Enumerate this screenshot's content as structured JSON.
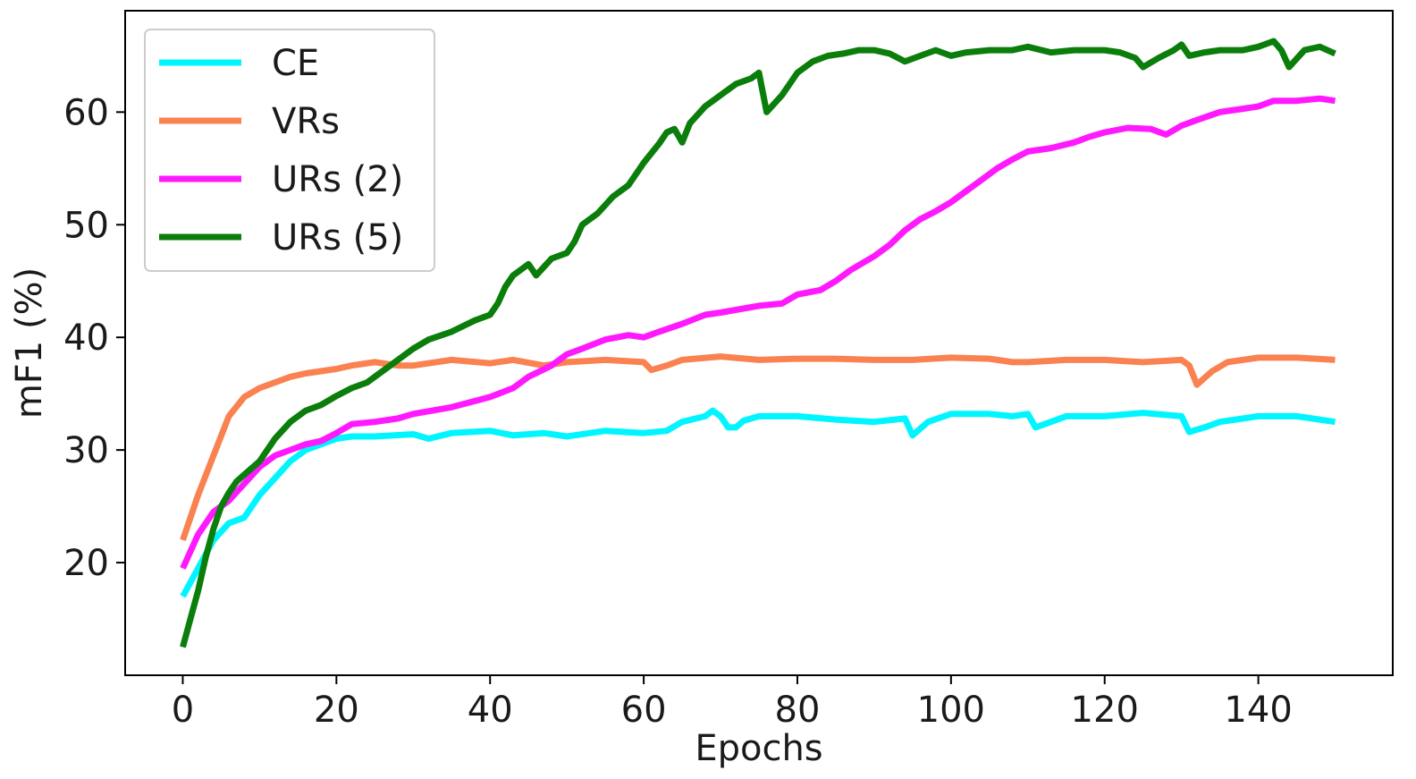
{
  "chart_data": {
    "type": "line",
    "title": "",
    "xlabel": "Epochs",
    "ylabel": "mF1 (%)",
    "xlim": [
      -7.5,
      157.5
    ],
    "ylim": [
      10,
      69
    ],
    "xticks": [
      0,
      20,
      40,
      60,
      80,
      100,
      120,
      140
    ],
    "yticks": [
      20,
      30,
      40,
      50,
      60
    ],
    "grid": false,
    "legend": "top-left",
    "series": [
      {
        "name": "CE",
        "color": "#00f5ff",
        "points": [
          [
            0,
            17
          ],
          [
            2,
            19.5
          ],
          [
            4,
            22
          ],
          [
            6,
            23.5
          ],
          [
            8,
            24
          ],
          [
            10,
            26
          ],
          [
            12,
            27.5
          ],
          [
            14,
            29
          ],
          [
            16,
            30
          ],
          [
            18,
            30.5
          ],
          [
            20,
            31
          ],
          [
            22,
            31.2
          ],
          [
            25,
            31.2
          ],
          [
            30,
            31.4
          ],
          [
            32,
            31
          ],
          [
            35,
            31.5
          ],
          [
            40,
            31.7
          ],
          [
            43,
            31.3
          ],
          [
            47,
            31.5
          ],
          [
            50,
            31.2
          ],
          [
            55,
            31.7
          ],
          [
            60,
            31.5
          ],
          [
            63,
            31.7
          ],
          [
            65,
            32.5
          ],
          [
            68,
            33
          ],
          [
            69,
            33.5
          ],
          [
            70,
            33
          ],
          [
            71,
            32
          ],
          [
            72,
            32
          ],
          [
            73,
            32.6
          ],
          [
            75,
            33
          ],
          [
            80,
            33
          ],
          [
            85,
            32.7
          ],
          [
            90,
            32.5
          ],
          [
            94,
            32.8
          ],
          [
            95,
            31.3
          ],
          [
            97,
            32.5
          ],
          [
            100,
            33.2
          ],
          [
            105,
            33.2
          ],
          [
            108,
            33
          ],
          [
            110,
            33.2
          ],
          [
            111,
            32
          ],
          [
            115,
            33
          ],
          [
            120,
            33
          ],
          [
            125,
            33.3
          ],
          [
            130,
            33
          ],
          [
            131,
            31.6
          ],
          [
            133,
            32
          ],
          [
            135,
            32.5
          ],
          [
            140,
            33
          ],
          [
            145,
            33
          ],
          [
            150,
            32.5
          ]
        ]
      },
      {
        "name": "VRs",
        "color": "#fa8150",
        "points": [
          [
            0,
            22
          ],
          [
            2,
            26
          ],
          [
            4,
            29.5
          ],
          [
            6,
            33
          ],
          [
            8,
            34.7
          ],
          [
            10,
            35.5
          ],
          [
            12,
            36
          ],
          [
            14,
            36.5
          ],
          [
            16,
            36.8
          ],
          [
            18,
            37
          ],
          [
            20,
            37.2
          ],
          [
            22,
            37.5
          ],
          [
            25,
            37.8
          ],
          [
            28,
            37.5
          ],
          [
            30,
            37.5
          ],
          [
            35,
            38
          ],
          [
            40,
            37.7
          ],
          [
            43,
            38
          ],
          [
            47,
            37.5
          ],
          [
            50,
            37.8
          ],
          [
            55,
            38
          ],
          [
            60,
            37.8
          ],
          [
            61,
            37.1
          ],
          [
            63,
            37.5
          ],
          [
            65,
            38
          ],
          [
            70,
            38.3
          ],
          [
            75,
            38
          ],
          [
            80,
            38.1
          ],
          [
            85,
            38.1
          ],
          [
            90,
            38
          ],
          [
            95,
            38
          ],
          [
            100,
            38.2
          ],
          [
            105,
            38.1
          ],
          [
            108,
            37.8
          ],
          [
            110,
            37.8
          ],
          [
            115,
            38
          ],
          [
            120,
            38
          ],
          [
            125,
            37.8
          ],
          [
            130,
            38
          ],
          [
            131,
            37.5
          ],
          [
            132,
            35.8
          ],
          [
            134,
            37
          ],
          [
            136,
            37.8
          ],
          [
            140,
            38.2
          ],
          [
            145,
            38.2
          ],
          [
            150,
            38
          ]
        ]
      },
      {
        "name": "URs (2)",
        "color": "#ff19ff",
        "points": [
          [
            0,
            19.5
          ],
          [
            2,
            22.5
          ],
          [
            4,
            24.5
          ],
          [
            6,
            25.5
          ],
          [
            8,
            27
          ],
          [
            10,
            28.5
          ],
          [
            12,
            29.5
          ],
          [
            14,
            30
          ],
          [
            16,
            30.5
          ],
          [
            18,
            30.8
          ],
          [
            20,
            31.5
          ],
          [
            22,
            32.3
          ],
          [
            25,
            32.5
          ],
          [
            28,
            32.8
          ],
          [
            30,
            33.2
          ],
          [
            35,
            33.8
          ],
          [
            40,
            34.7
          ],
          [
            43,
            35.5
          ],
          [
            45,
            36.5
          ],
          [
            48,
            37.5
          ],
          [
            50,
            38.5
          ],
          [
            52,
            39
          ],
          [
            55,
            39.8
          ],
          [
            58,
            40.2
          ],
          [
            60,
            40
          ],
          [
            62,
            40.5
          ],
          [
            65,
            41.2
          ],
          [
            68,
            42
          ],
          [
            70,
            42.2
          ],
          [
            75,
            42.8
          ],
          [
            78,
            43
          ],
          [
            80,
            43.8
          ],
          [
            83,
            44.2
          ],
          [
            85,
            45
          ],
          [
            87,
            46
          ],
          [
            90,
            47.2
          ],
          [
            92,
            48.2
          ],
          [
            94,
            49.5
          ],
          [
            96,
            50.5
          ],
          [
            98,
            51.2
          ],
          [
            100,
            52
          ],
          [
            102,
            53
          ],
          [
            104,
            54
          ],
          [
            106,
            55
          ],
          [
            108,
            55.8
          ],
          [
            110,
            56.5
          ],
          [
            113,
            56.8
          ],
          [
            116,
            57.3
          ],
          [
            118,
            57.8
          ],
          [
            120,
            58.2
          ],
          [
            123,
            58.6
          ],
          [
            126,
            58.5
          ],
          [
            128,
            58
          ],
          [
            130,
            58.8
          ],
          [
            132,
            59.3
          ],
          [
            135,
            60
          ],
          [
            138,
            60.3
          ],
          [
            140,
            60.5
          ],
          [
            142,
            61
          ],
          [
            145,
            61
          ],
          [
            148,
            61.2
          ],
          [
            150,
            61
          ]
        ]
      },
      {
        "name": "URs (5)",
        "color": "#0a7d0a",
        "points": [
          [
            0,
            12.5
          ],
          [
            1,
            15
          ],
          [
            2,
            17.5
          ],
          [
            3,
            20.5
          ],
          [
            4,
            23
          ],
          [
            5,
            25
          ],
          [
            6,
            26.2
          ],
          [
            7,
            27.2
          ],
          [
            8,
            27.8
          ],
          [
            10,
            29
          ],
          [
            12,
            31
          ],
          [
            14,
            32.5
          ],
          [
            16,
            33.5
          ],
          [
            18,
            34
          ],
          [
            20,
            34.8
          ],
          [
            22,
            35.5
          ],
          [
            24,
            36
          ],
          [
            26,
            37
          ],
          [
            28,
            38
          ],
          [
            30,
            39
          ],
          [
            32,
            39.8
          ],
          [
            35,
            40.5
          ],
          [
            38,
            41.5
          ],
          [
            40,
            42
          ],
          [
            41,
            43
          ],
          [
            42,
            44.5
          ],
          [
            43,
            45.5
          ],
          [
            45,
            46.5
          ],
          [
            46,
            45.5
          ],
          [
            48,
            47
          ],
          [
            50,
            47.5
          ],
          [
            51,
            48.5
          ],
          [
            52,
            50
          ],
          [
            54,
            51
          ],
          [
            56,
            52.5
          ],
          [
            58,
            53.5
          ],
          [
            60,
            55.5
          ],
          [
            62,
            57.2
          ],
          [
            63,
            58.2
          ],
          [
            64,
            58.5
          ],
          [
            65,
            57.3
          ],
          [
            66,
            59
          ],
          [
            68,
            60.5
          ],
          [
            70,
            61.5
          ],
          [
            72,
            62.5
          ],
          [
            74,
            63
          ],
          [
            75,
            63.5
          ],
          [
            76,
            60
          ],
          [
            78,
            61.5
          ],
          [
            80,
            63.5
          ],
          [
            82,
            64.5
          ],
          [
            84,
            65
          ],
          [
            86,
            65.2
          ],
          [
            88,
            65.5
          ],
          [
            90,
            65.5
          ],
          [
            92,
            65.2
          ],
          [
            94,
            64.5
          ],
          [
            96,
            65
          ],
          [
            98,
            65.5
          ],
          [
            100,
            65
          ],
          [
            102,
            65.3
          ],
          [
            105,
            65.5
          ],
          [
            108,
            65.5
          ],
          [
            110,
            65.8
          ],
          [
            113,
            65.3
          ],
          [
            116,
            65.5
          ],
          [
            118,
            65.5
          ],
          [
            120,
            65.5
          ],
          [
            122,
            65.3
          ],
          [
            124,
            64.8
          ],
          [
            125,
            64
          ],
          [
            127,
            64.8
          ],
          [
            129,
            65.5
          ],
          [
            130,
            66
          ],
          [
            131,
            65
          ],
          [
            133,
            65.3
          ],
          [
            135,
            65.5
          ],
          [
            138,
            65.5
          ],
          [
            140,
            65.8
          ],
          [
            142,
            66.3
          ],
          [
            143,
            65.5
          ],
          [
            144,
            64
          ],
          [
            146,
            65.5
          ],
          [
            148,
            65.8
          ],
          [
            150,
            65.2
          ]
        ]
      }
    ]
  }
}
